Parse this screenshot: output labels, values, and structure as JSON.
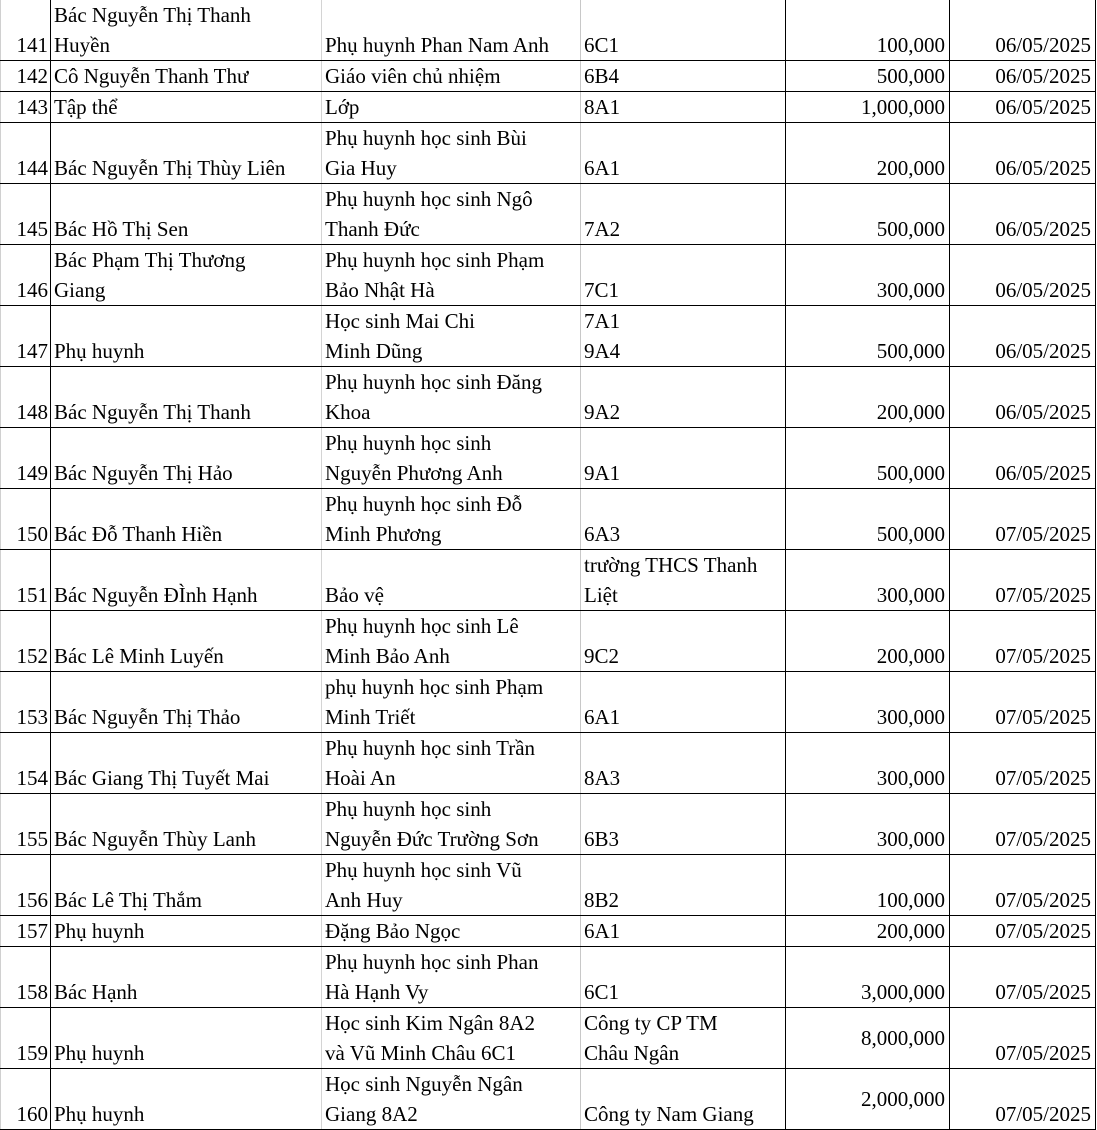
{
  "rows": [
    {
      "no": "141",
      "name": "Bác Nguyễn Thị Thanh\nHuyền",
      "role": "Phụ huynh Phan Nam Anh",
      "class": "6C1",
      "amount": "100,000",
      "date": "06/05/2025"
    },
    {
      "no": "142",
      "name": "Cô Nguyễn Thanh Thư",
      "role": "Giáo viên chủ nhiệm",
      "class": "6B4",
      "amount": "500,000",
      "date": "06/05/2025"
    },
    {
      "no": "143",
      "name": "Tập thể",
      "role": "Lớp",
      "class": "8A1",
      "amount": "1,000,000",
      "date": "06/05/2025"
    },
    {
      "no": "144",
      "name": "Bác Nguyễn Thị Thùy Liên",
      "role": "Phụ huynh học sinh Bùi\nGia Huy",
      "class": "6A1",
      "amount": "200,000",
      "date": "06/05/2025"
    },
    {
      "no": "145",
      "name": "Bác Hồ Thị Sen",
      "role": "Phụ huynh học sinh Ngô\nThanh Đức",
      "class": "7A2",
      "amount": "500,000",
      "date": "06/05/2025"
    },
    {
      "no": "146",
      "name": "Bác Phạm Thị Thương\nGiang",
      "role": "Phụ huynh học sinh Phạm\nBảo Nhật Hà",
      "class": "7C1",
      "amount": "300,000",
      "date": "06/05/2025"
    },
    {
      "no": "147",
      "name": "Phụ huynh",
      "role": "Học sinh Mai Chi\nMinh Dũng",
      "class": "7A1\n9A4",
      "amount": "500,000",
      "date": "06/05/2025"
    },
    {
      "no": "148",
      "name": "Bác Nguyễn Thị Thanh",
      "role": "Phụ huynh học sinh Đăng\nKhoa",
      "class": "9A2",
      "amount": "200,000",
      "date": "06/05/2025"
    },
    {
      "no": "149",
      "name": "Bác Nguyễn Thị Hảo",
      "role": "Phụ huynh học sinh\nNguyễn Phương Anh",
      "class": "9A1",
      "amount": "500,000",
      "date": "06/05/2025"
    },
    {
      "no": "150",
      "name": "Bác Đỗ Thanh Hiền",
      "role": "Phụ huynh học sinh Đỗ\nMinh Phương",
      "class": "6A3",
      "amount": "500,000",
      "date": "07/05/2025"
    },
    {
      "no": "151",
      "name": "Bác Nguyễn ĐÌnh Hạnh",
      "role": "Bảo vệ",
      "class": "trường THCS Thanh\nLiệt",
      "amount": "300,000",
      "date": "07/05/2025"
    },
    {
      "no": "152",
      "name": "Bác Lê Minh Luyến",
      "role": "Phụ huynh học sinh Lê\nMinh Bảo Anh",
      "class": "9C2",
      "amount": "200,000",
      "date": "07/05/2025"
    },
    {
      "no": "153",
      "name": "Bác Nguyễn Thị Thảo",
      "role": "phụ huynh học sinh Phạm\nMinh Triết",
      "class": "6A1",
      "amount": "300,000",
      "date": "07/05/2025"
    },
    {
      "no": "154",
      "name": "Bác Giang Thị Tuyết Mai",
      "role": "Phụ huynh học sinh Trần\nHoài An",
      "class": "8A3",
      "amount": "300,000",
      "date": "07/05/2025"
    },
    {
      "no": "155",
      "name": "Bác Nguyễn Thùy Lanh",
      "role": "Phụ huynh học sinh\nNguyễn Đức Trường Sơn",
      "class": "6B3",
      "amount": "300,000",
      "date": "07/05/2025"
    },
    {
      "no": "156",
      "name": "Bác Lê Thị Thắm",
      "role": "Phụ huynh học sinh Vũ\nAnh Huy",
      "class": "8B2",
      "amount": "100,000",
      "date": "07/05/2025"
    },
    {
      "no": "157",
      "name": "Phụ huynh",
      "role": "Đặng Bảo Ngọc",
      "class": "6A1",
      "amount": "200,000",
      "date": "07/05/2025"
    },
    {
      "no": "158",
      "name": "Bác Hạnh",
      "role": "Phụ huynh học sinh Phan\nHà Hạnh Vy",
      "class": "6C1",
      "amount": "3,000,000",
      "date": "07/05/2025"
    },
    {
      "no": "159",
      "name": "Phụ huynh",
      "role": "Học sinh Kim Ngân 8A2\nvà Vũ Minh Châu 6C1",
      "class": "Công ty CP TM\nChâu Ngân",
      "amount": "8,000,000",
      "date": "07/05/2025",
      "amount_centered": true
    },
    {
      "no": "160",
      "name": "Phụ huynh",
      "role": "Học sinh Nguyễn Ngân\nGiang 8A2",
      "class": "Công ty Nam Giang",
      "amount": "2,000,000",
      "date": "07/05/2025",
      "amount_centered": true
    }
  ]
}
